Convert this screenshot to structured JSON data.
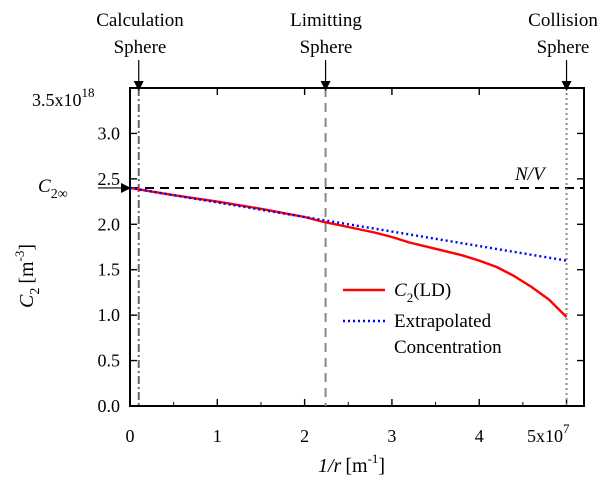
{
  "chart_data": {
    "type": "line",
    "xlabel_main": "1/r",
    "xlabel_unit": "[m",
    "xlabel_exp": "-1",
    "xlabel_close": "]",
    "ylabel_main": "C",
    "ylabel_sub": "2",
    "ylabel_unit": "[m",
    "ylabel_exp": "-3",
    "ylabel_close": "]",
    "xlim": [
      0,
      5.2
    ],
    "ylim": [
      0,
      3.5
    ],
    "x_ticks": [
      {
        "value": 0,
        "label": "0"
      },
      {
        "value": 1,
        "label": "1"
      },
      {
        "value": 2,
        "label": "2"
      },
      {
        "value": 3,
        "label": "3"
      },
      {
        "value": 4,
        "label": "4"
      }
    ],
    "x_last_tick": {
      "value": 5,
      "base": "5x10",
      "exp": "7"
    },
    "y_ticks": [
      {
        "value": 0.0,
        "label": "0.0"
      },
      {
        "value": 0.5,
        "label": "0.5"
      },
      {
        "value": 1.0,
        "label": "1.0"
      },
      {
        "value": 1.5,
        "label": "1.5"
      },
      {
        "value": 2.0,
        "label": "2.0"
      },
      {
        "value": 2.5,
        "label": "2.5"
      },
      {
        "value": 3.0,
        "label": "3.0"
      }
    ],
    "y_top_tick": {
      "value": 3.5,
      "base": "3.5x10",
      "exp": "18"
    },
    "series": [
      {
        "name_main": "C",
        "name_sub": "2",
        "name_rest": "(LD)",
        "color": "#ff0000",
        "style": "solid",
        "x": [
          0.0,
          0.5,
          1.0,
          1.5,
          2.0,
          2.2,
          2.5,
          2.8,
          3.0,
          3.2,
          3.5,
          3.8,
          4.0,
          4.2,
          4.4,
          4.6,
          4.8,
          5.0
        ],
        "y": [
          2.4,
          2.32,
          2.25,
          2.17,
          2.08,
          2.03,
          1.97,
          1.91,
          1.86,
          1.8,
          1.73,
          1.66,
          1.6,
          1.53,
          1.43,
          1.31,
          1.17,
          0.98
        ]
      },
      {
        "name": "Extrapolated",
        "name_line2": "Concentration",
        "color": "#0000ff",
        "style": "dotted",
        "x": [
          0.0,
          5.0
        ],
        "y": [
          2.4,
          1.6
        ]
      }
    ],
    "reference_lines": [
      {
        "orientation": "horizontal",
        "value": 2.4,
        "label": "N/V",
        "color": "#000000",
        "style": "dashed"
      },
      {
        "orientation": "vertical",
        "value": 0.1,
        "label_line1": "Calculation",
        "label_line2": "Sphere",
        "color": "#666666",
        "style": "dashdot"
      },
      {
        "orientation": "vertical",
        "value": 2.24,
        "label_line1": "Limitting",
        "label_line2": "Sphere",
        "color": "#888888",
        "style": "dashed"
      },
      {
        "orientation": "vertical",
        "value": 5.0,
        "label_line1": "Collision",
        "label_line2": "Sphere",
        "color": "#888888",
        "style": "dotted"
      }
    ],
    "c2inf_label": {
      "main": "C",
      "sub": "2∞",
      "value": 2.4
    },
    "legend_placement": "right-center",
    "grid": false
  }
}
